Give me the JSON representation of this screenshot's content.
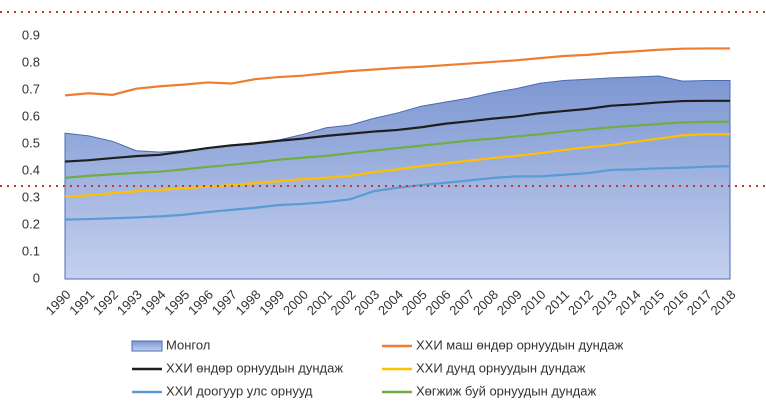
{
  "chart_data": {
    "type": "line",
    "categories": [
      "1990",
      "1991",
      "1992",
      "1993",
      "1994",
      "1995",
      "1996",
      "1997",
      "1998",
      "1999",
      "2000",
      "2001",
      "2002",
      "2003",
      "2004",
      "2005",
      "2006",
      "2007",
      "2008",
      "2009",
      "2010",
      "2011",
      "2012",
      "2013",
      "2014",
      "2015",
      "2016",
      "2017",
      "2018"
    ],
    "ylim": [
      0,
      0.9
    ],
    "yticks": [
      0,
      0.1,
      0.2,
      0.3,
      0.4,
      0.5,
      0.6,
      0.7,
      0.8,
      0.9
    ],
    "series": [
      {
        "name": "Монгол",
        "style": "area",
        "color": "#8ea6d9",
        "values": [
          0.54,
          0.53,
          0.51,
          0.475,
          0.47,
          0.475,
          0.485,
          0.495,
          0.505,
          0.515,
          0.535,
          0.56,
          0.57,
          0.595,
          0.615,
          0.64,
          0.655,
          0.67,
          0.69,
          0.705,
          0.725,
          0.735,
          0.74,
          0.745,
          0.748,
          0.752,
          0.733,
          0.735,
          0.735
        ]
      },
      {
        "name": "ХХИ маш өндөр орнуудын дундаж",
        "style": "line",
        "color": "#ed7d31",
        "values": [
          0.68,
          0.688,
          0.682,
          0.705,
          0.714,
          0.72,
          0.728,
          0.724,
          0.74,
          0.748,
          0.753,
          0.762,
          0.77,
          0.776,
          0.782,
          0.786,
          0.792,
          0.798,
          0.804,
          0.81,
          0.818,
          0.826,
          0.83,
          0.838,
          0.843,
          0.849,
          0.853,
          0.854,
          0.854
        ]
      },
      {
        "name": "ХХИ өндөр орнуудын дундаж",
        "style": "line",
        "color": "#1e1e1e",
        "values": [
          0.435,
          0.44,
          0.448,
          0.455,
          0.46,
          0.472,
          0.485,
          0.495,
          0.502,
          0.512,
          0.52,
          0.53,
          0.538,
          0.546,
          0.552,
          0.562,
          0.575,
          0.584,
          0.594,
          0.602,
          0.614,
          0.622,
          0.63,
          0.642,
          0.647,
          0.654,
          0.659,
          0.66,
          0.66
        ]
      },
      {
        "name": "ХХИ дунд орнуудын дундаж",
        "style": "line",
        "color": "#ffc000",
        "values": [
          0.305,
          0.31,
          0.318,
          0.325,
          0.33,
          0.336,
          0.342,
          0.348,
          0.355,
          0.362,
          0.37,
          0.375,
          0.382,
          0.396,
          0.406,
          0.418,
          0.428,
          0.438,
          0.448,
          0.456,
          0.466,
          0.478,
          0.488,
          0.496,
          0.508,
          0.52,
          0.532,
          0.536,
          0.536
        ]
      },
      {
        "name": "ХХИ доогуур улс орнууд",
        "style": "line",
        "color": "#5b9bd5",
        "values": [
          0.22,
          0.222,
          0.225,
          0.228,
          0.232,
          0.238,
          0.248,
          0.256,
          0.264,
          0.274,
          0.278,
          0.285,
          0.295,
          0.325,
          0.338,
          0.348,
          0.356,
          0.365,
          0.374,
          0.38,
          0.38,
          0.386,
          0.392,
          0.404,
          0.406,
          0.41,
          0.412,
          0.416,
          0.418
        ]
      },
      {
        "name": "Хөгжиж буй орнуудын дундаж",
        "style": "line",
        "color": "#70ad47",
        "values": [
          0.375,
          0.382,
          0.388,
          0.393,
          0.398,
          0.406,
          0.415,
          0.423,
          0.432,
          0.442,
          0.449,
          0.456,
          0.466,
          0.476,
          0.485,
          0.494,
          0.503,
          0.513,
          0.52,
          0.528,
          0.536,
          0.546,
          0.554,
          0.562,
          0.568,
          0.574,
          0.58,
          0.582,
          0.583
        ]
      }
    ]
  }
}
